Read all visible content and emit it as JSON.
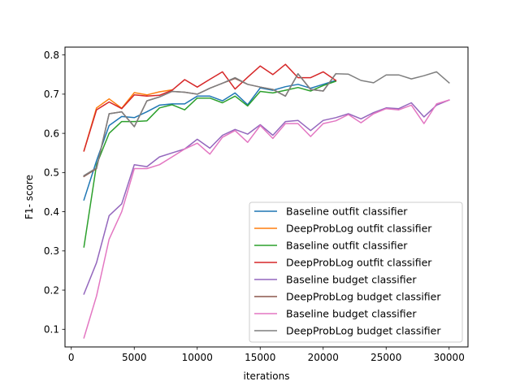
{
  "chart_data": {
    "type": "line",
    "xlabel": "iterations",
    "ylabel": "F1- score",
    "xlim": [
      -500,
      31500
    ],
    "ylim": [
      0.055,
      0.82
    ],
    "xticks": [
      0,
      5000,
      10000,
      15000,
      20000,
      25000,
      30000
    ],
    "yticks": [
      0.1,
      0.2,
      0.3,
      0.4,
      0.5,
      0.6,
      0.7,
      0.8
    ],
    "grid": false,
    "legend_position": "lower right",
    "series": [
      {
        "name": "Baseline outfit classifier",
        "color": "#1f77b4",
        "x": [
          1000,
          2000,
          3000,
          4000,
          5000,
          6000,
          7000,
          8000,
          9000,
          10000,
          11000,
          12000,
          13000,
          14000,
          15000,
          16000,
          17000,
          18000,
          19000,
          20000,
          21000
        ],
        "y": [
          0.43,
          0.53,
          0.62,
          0.643,
          0.64,
          0.655,
          0.672,
          0.675,
          0.675,
          0.695,
          0.695,
          0.683,
          0.703,
          0.673,
          0.716,
          0.71,
          0.719,
          0.725,
          0.715,
          0.725,
          0.735
        ]
      },
      {
        "name": "DeepProbLog outfit classifier",
        "color": "#ff7f0e",
        "x": [
          1000,
          2000,
          3000,
          4000,
          5000,
          6000,
          7000,
          8000
        ],
        "y": [
          0.555,
          0.665,
          0.688,
          0.664,
          0.704,
          0.698,
          0.706,
          0.711
        ]
      },
      {
        "name": "Baseline outfit classifier",
        "color": "#2ca02c",
        "x": [
          1000,
          2000,
          3000,
          4000,
          5000,
          6000,
          7000,
          8000,
          9000,
          10000,
          11000,
          12000,
          13000,
          14000,
          15000,
          16000,
          17000,
          18000,
          19000,
          20000,
          21000
        ],
        "y": [
          0.31,
          0.52,
          0.6,
          0.63,
          0.63,
          0.632,
          0.665,
          0.673,
          0.66,
          0.69,
          0.69,
          0.678,
          0.695,
          0.67,
          0.707,
          0.703,
          0.71,
          0.717,
          0.708,
          0.722,
          0.733
        ]
      },
      {
        "name": "DeepProbLog outfit classifier",
        "color": "#d62728",
        "x": [
          1000,
          2000,
          3000,
          4000,
          5000,
          6000,
          7000,
          8000,
          9000,
          10000,
          11000,
          12000,
          13000,
          14000,
          15000,
          16000,
          17000,
          18000,
          19000,
          20000,
          21000
        ],
        "y": [
          0.555,
          0.66,
          0.68,
          0.663,
          0.698,
          0.695,
          0.697,
          0.71,
          0.737,
          0.718,
          0.738,
          0.757,
          0.713,
          0.743,
          0.772,
          0.75,
          0.776,
          0.742,
          0.742,
          0.757,
          0.735
        ]
      },
      {
        "name": "Baseline budget classifier",
        "color": "#9467bd",
        "x": [
          1000,
          2000,
          3000,
          4000,
          5000,
          6000,
          7000,
          8000,
          9000,
          10000,
          11000,
          12000,
          13000,
          14000,
          15000,
          16000,
          17000,
          18000,
          19000,
          20000,
          21000,
          22000,
          23000,
          24000,
          25000,
          26000,
          27000,
          28000,
          29000,
          30000
        ],
        "y": [
          0.19,
          0.27,
          0.39,
          0.42,
          0.52,
          0.515,
          0.54,
          0.55,
          0.56,
          0.585,
          0.562,
          0.595,
          0.61,
          0.598,
          0.622,
          0.595,
          0.63,
          0.633,
          0.607,
          0.633,
          0.64,
          0.65,
          0.637,
          0.653,
          0.665,
          0.663,
          0.678,
          0.642,
          0.672,
          0.685
        ]
      },
      {
        "name": "DeepProbLog budget classifier",
        "color": "#8c564b",
        "x": [
          1000,
          2000,
          3000,
          4000,
          5000,
          6000,
          7000,
          8000,
          9000,
          10000,
          11000,
          12000,
          13000,
          14000,
          15000,
          16000,
          17000,
          18000,
          19000,
          20000,
          21000
        ],
        "y": [
          0.49,
          0.51,
          0.65,
          0.655,
          0.617,
          0.683,
          0.693,
          0.707,
          0.705,
          0.7,
          0.715,
          0.728,
          0.74,
          0.725,
          0.718,
          0.712,
          0.695,
          0.752,
          0.712,
          0.708,
          0.752
        ]
      },
      {
        "name": "Baseline budget classifier",
        "color": "#e377c2",
        "x": [
          1000,
          2000,
          3000,
          4000,
          5000,
          6000,
          7000,
          8000,
          9000,
          10000,
          11000,
          12000,
          13000,
          14000,
          15000,
          16000,
          17000,
          18000,
          19000,
          20000,
          21000,
          22000,
          23000,
          24000,
          25000,
          26000,
          27000,
          28000,
          29000,
          30000
        ],
        "y": [
          0.078,
          0.185,
          0.33,
          0.4,
          0.51,
          0.51,
          0.52,
          0.54,
          0.56,
          0.575,
          0.547,
          0.59,
          0.607,
          0.577,
          0.62,
          0.587,
          0.625,
          0.625,
          0.592,
          0.625,
          0.632,
          0.648,
          0.627,
          0.65,
          0.663,
          0.66,
          0.672,
          0.625,
          0.675,
          0.685
        ]
      },
      {
        "name": "DeepProbLog budget classifier",
        "color": "#7f7f7f",
        "x": [
          1000,
          2000,
          3000,
          4000,
          5000,
          6000,
          7000,
          8000,
          9000,
          10000,
          11000,
          12000,
          13000,
          14000,
          15000,
          16000,
          17000,
          18000,
          19000,
          20000,
          21000,
          22000,
          23000,
          24000,
          25000,
          26000,
          27000,
          28000,
          29000,
          30000
        ],
        "y": [
          0.492,
          0.512,
          0.65,
          0.655,
          0.617,
          0.683,
          0.693,
          0.707,
          0.705,
          0.7,
          0.715,
          0.728,
          0.742,
          0.725,
          0.718,
          0.712,
          0.695,
          0.752,
          0.712,
          0.708,
          0.752,
          0.751,
          0.735,
          0.729,
          0.749,
          0.749,
          0.739,
          0.747,
          0.757,
          0.729
        ]
      }
    ]
  }
}
